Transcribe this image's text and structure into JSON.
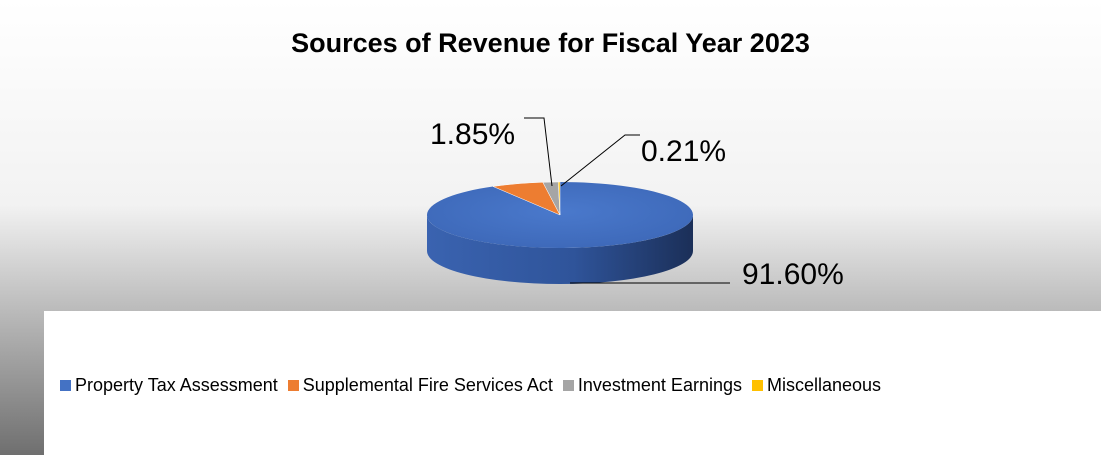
{
  "chart_data": {
    "type": "pie",
    "title": "Sources of Revenue for Fiscal Year 2023",
    "categories": [
      "Property Tax Assessment",
      "Supplemental Fire Services Act",
      "Investment Earnings",
      "Miscellaneous"
    ],
    "values": [
      91.6,
      6.34,
      1.85,
      0.21
    ],
    "data_labels": [
      "91.60%",
      "",
      "1.85%",
      "0.21%"
    ],
    "colors": [
      "#4472c4",
      "#ed7d31",
      "#a5a5a5",
      "#ffc000"
    ],
    "legend": "bottom",
    "style": "3d"
  }
}
